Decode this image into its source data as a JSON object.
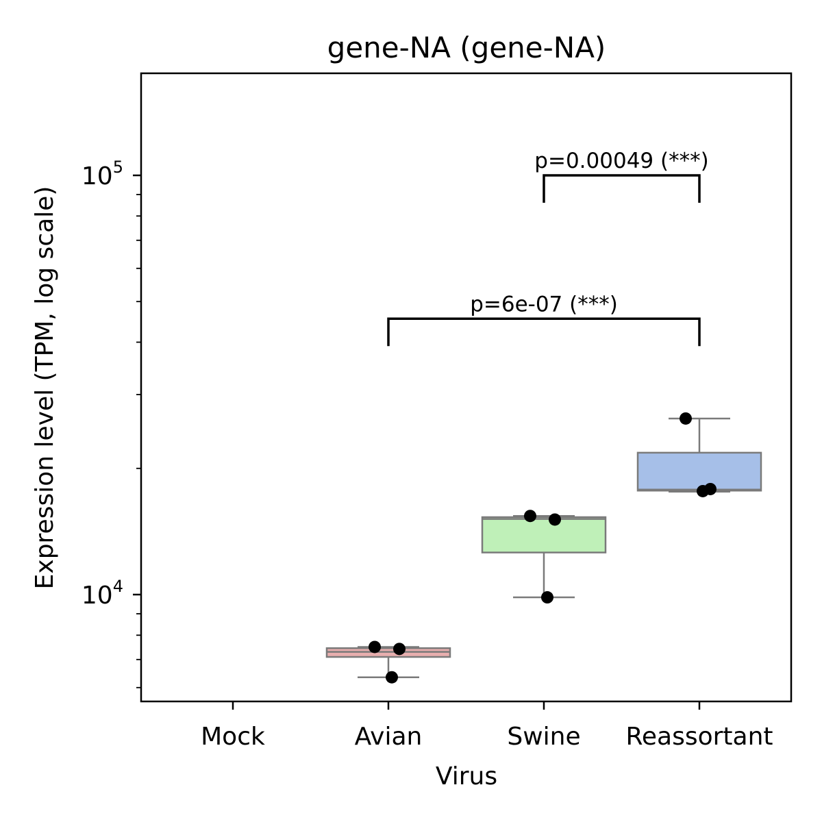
{
  "chart_data": {
    "type": "box",
    "title": "gene-NA (gene-NA)",
    "xlabel": "Virus",
    "ylabel": "Expression level (TPM, log scale)",
    "y_scale": "log",
    "ylim": [
      6000,
      170000
    ],
    "y_major_ticks": [
      {
        "value": 10000,
        "base": "10",
        "exp": "4"
      },
      {
        "value": 100000,
        "base": "10",
        "exp": "5"
      }
    ],
    "categories": [
      "Mock",
      "Avian",
      "Swine",
      "Reassortant"
    ],
    "boxes": [
      {
        "category": "Mock",
        "color": "#ffffff",
        "stats": null,
        "points": []
      },
      {
        "category": "Avian",
        "color": "#e8aeae",
        "stats": {
          "whislo": 6350,
          "q1": 7100,
          "median": 7300,
          "q3": 7450,
          "whishi": 7500
        },
        "points": [
          7500,
          7420,
          6350
        ]
      },
      {
        "category": "Swine",
        "color": "#bff0b8",
        "stats": {
          "whislo": 9850,
          "q1": 12600,
          "median": 15150,
          "q3": 15300,
          "whishi": 15400
        },
        "points": [
          15400,
          15100,
          9850
        ]
      },
      {
        "category": "Reassortant",
        "color": "#a6bfe8",
        "stats": {
          "whislo": 17600,
          "q1": 17700,
          "median": 17800,
          "q3": 21800,
          "whishi": 26300
        },
        "points": [
          26300,
          17850,
          17650
        ]
      }
    ],
    "comparisons": [
      {
        "group1": "Swine",
        "group2": "Reassortant",
        "y": 100000,
        "label": "p=0.00049 (***)"
      },
      {
        "group1": "Avian",
        "group2": "Reassortant",
        "y": 45500,
        "label": "p=6e-07 (***)"
      }
    ],
    "colors": {
      "box_edge": "#7a7a7a",
      "point": "#000000",
      "bracket": "#000000"
    }
  }
}
